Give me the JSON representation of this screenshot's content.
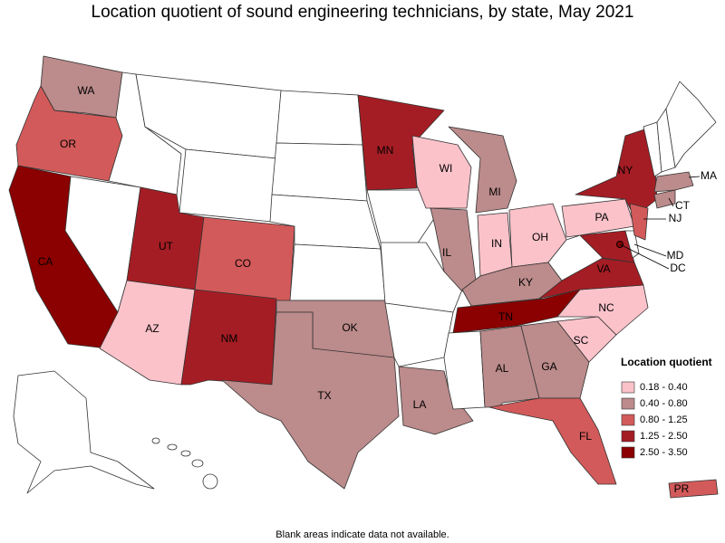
{
  "title": "Location quotient of sound engineering technicians, by state, May 2021",
  "legend": {
    "title": "Location quotient",
    "items": [
      {
        "label": "0.18 - 0.40",
        "color": "#fbc2ca",
        "states": [
          "WI",
          "IN",
          "OH",
          "PA",
          "AZ",
          "NC",
          "SC"
        ]
      },
      {
        "label": "0.40 - 0.80",
        "color": "#bc8b8b",
        "states": [
          "WA",
          "MI",
          "IL",
          "KY",
          "OK",
          "TX",
          "LA",
          "AL",
          "GA",
          "MA",
          "CT"
        ]
      },
      {
        "label": "0.80 - 1.25",
        "color": "#d35a5a",
        "states": [
          "OR",
          "CO",
          "FL",
          "NJ",
          "PR"
        ]
      },
      {
        "label": "1.25 - 2.50",
        "color": "#a51d24",
        "states": [
          "MN",
          "UT",
          "NM",
          "NY",
          "VA",
          "MD"
        ]
      },
      {
        "label": "2.50 - 3.50",
        "color": "#8b0000",
        "states": [
          "CA",
          "TN",
          "DC"
        ]
      }
    ]
  },
  "footnote": "Blank areas indicate data not available."
}
